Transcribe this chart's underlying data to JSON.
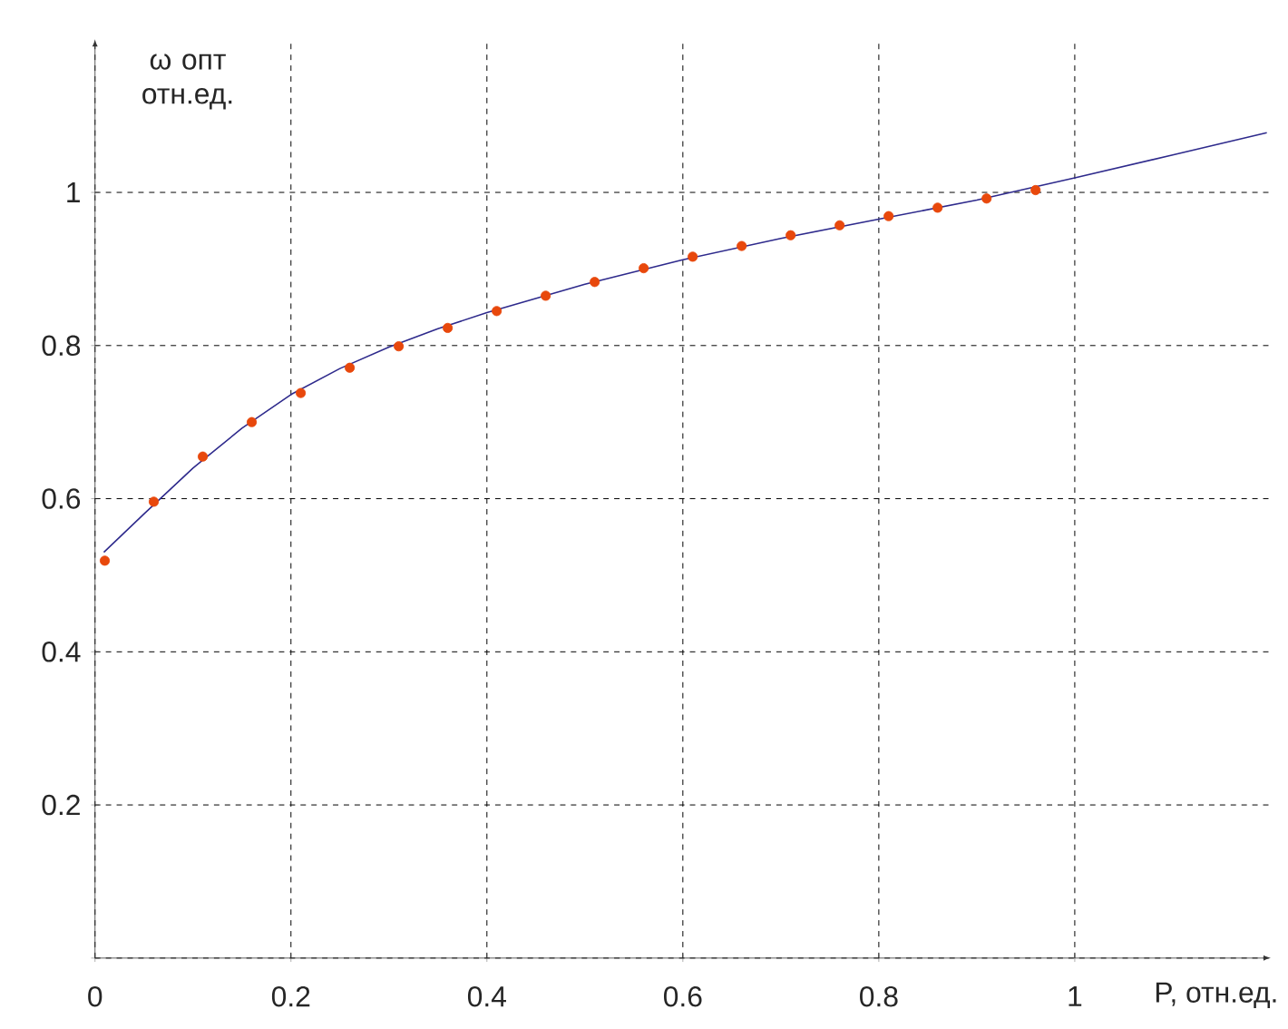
{
  "chart_data": {
    "type": "line",
    "xlabel": "P, отн.ед.",
    "ylabel": "ω опт отн.ед.",
    "xlim": [
      0,
      1.2
    ],
    "ylim": [
      0,
      1.2
    ],
    "xticks": [
      0,
      0.2,
      0.4,
      0.6,
      0.8,
      1
    ],
    "yticks": [
      {
        "value": 0,
        "label": null
      },
      0.2,
      0.4,
      0.6,
      0.8,
      1
    ],
    "grid": true,
    "series": [
      {
        "color": "#2e2a8c",
        "marker": "none",
        "x": [
          0.009,
          0.05,
          0.1,
          0.15,
          0.2,
          0.25,
          0.3,
          0.35,
          0.4,
          0.5,
          0.6,
          0.7,
          0.8,
          0.9,
          1.0,
          1.1,
          1.196
        ],
        "values": [
          0.53,
          0.58,
          0.64,
          0.692,
          0.736,
          0.77,
          0.798,
          0.822,
          0.843,
          0.88,
          0.912,
          0.94,
          0.965,
          0.99,
          1.019,
          1.049,
          1.078
        ]
      },
      {
        "type": "scatter",
        "color": "#e8480c",
        "marker": "circle",
        "x": [
          0.01,
          0.06,
          0.11,
          0.16,
          0.21,
          0.26,
          0.31,
          0.36,
          0.41,
          0.46,
          0.51,
          0.56,
          0.61,
          0.66,
          0.71,
          0.76,
          0.81,
          0.86,
          0.91,
          0.96
        ],
        "values": [
          0.519,
          0.596,
          0.655,
          0.7,
          0.738,
          0.771,
          0.799,
          0.823,
          0.845,
          0.865,
          0.883,
          0.901,
          0.916,
          0.93,
          0.944,
          0.957,
          0.969,
          0.98,
          0.992,
          1.003
        ]
      }
    ]
  }
}
